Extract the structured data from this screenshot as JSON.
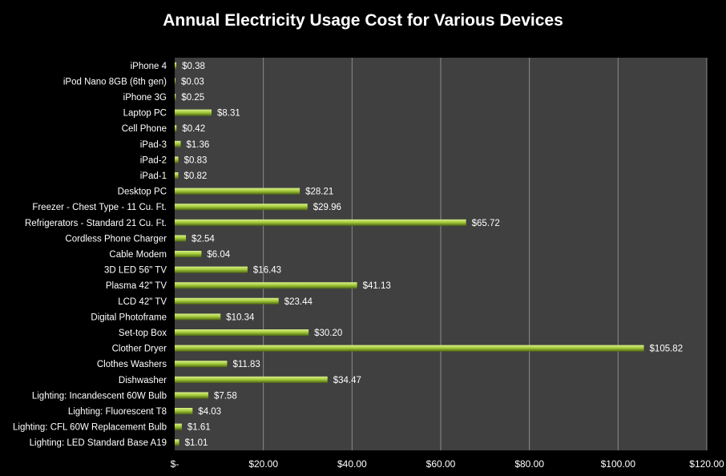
{
  "chart_data": {
    "type": "bar",
    "orientation": "horizontal",
    "title": "Annual Electricity Usage Cost for Various Devices",
    "xlim": [
      0,
      120
    ],
    "x_ticks": [
      0,
      20,
      40,
      60,
      80,
      100,
      120
    ],
    "x_tick_labels": [
      "$-",
      "$20.00",
      "$40.00",
      "$60.00",
      "$80.00",
      "$100.00",
      "$120.00"
    ],
    "grid": true,
    "categories": [
      "iPhone 4",
      "iPod Nano 8GB (6th gen)",
      "iPhone 3G",
      "Laptop PC",
      "Cell Phone",
      "iPad-3",
      "iPad-2",
      "iPad-1",
      "Desktop PC",
      "Freezer - Chest Type - 11 Cu. Ft.",
      "Refrigerators - Standard 21 Cu. Ft.",
      "Cordless Phone Charger",
      "Cable Modem",
      "3D LED 56\" TV",
      "Plasma 42\" TV",
      "LCD 42\" TV",
      "Digital Photoframe",
      "Set-top Box",
      "Clother Dryer",
      "Clothes Washers",
      "Dishwasher",
      "Lighting: Incandescent 60W Bulb",
      "Lighting: Fluorescent T8",
      "Lighting: CFL 60W Replacement Bulb",
      "Lighting: LED Standard Base A19"
    ],
    "values": [
      0.38,
      0.03,
      0.25,
      8.31,
      0.42,
      1.36,
      0.83,
      0.82,
      28.21,
      29.96,
      65.72,
      2.54,
      6.04,
      16.43,
      41.13,
      23.44,
      10.34,
      30.2,
      105.82,
      11.83,
      34.47,
      7.58,
      4.03,
      1.61,
      1.01
    ],
    "value_labels": [
      "$0.38",
      "$0.03",
      "$0.25",
      "$8.31",
      "$0.42",
      "$1.36",
      "$0.83",
      "$0.82",
      "$28.21",
      "$29.96",
      "$65.72",
      "$2.54",
      "$6.04",
      "$16.43",
      "$41.13",
      "$23.44",
      "$10.34",
      "$30.20",
      "$105.82",
      "$11.83",
      "$34.47",
      "$7.58",
      "$4.03",
      "$1.61",
      "$1.01"
    ],
    "colors": {
      "background": "#000000",
      "plot_area": "#404040",
      "gridline": "#8c8c8c",
      "bar_light": "#d8f08a",
      "bar_mid": "#a6cc3c",
      "bar_dark": "#4d6612",
      "text": "#ffffff"
    }
  }
}
